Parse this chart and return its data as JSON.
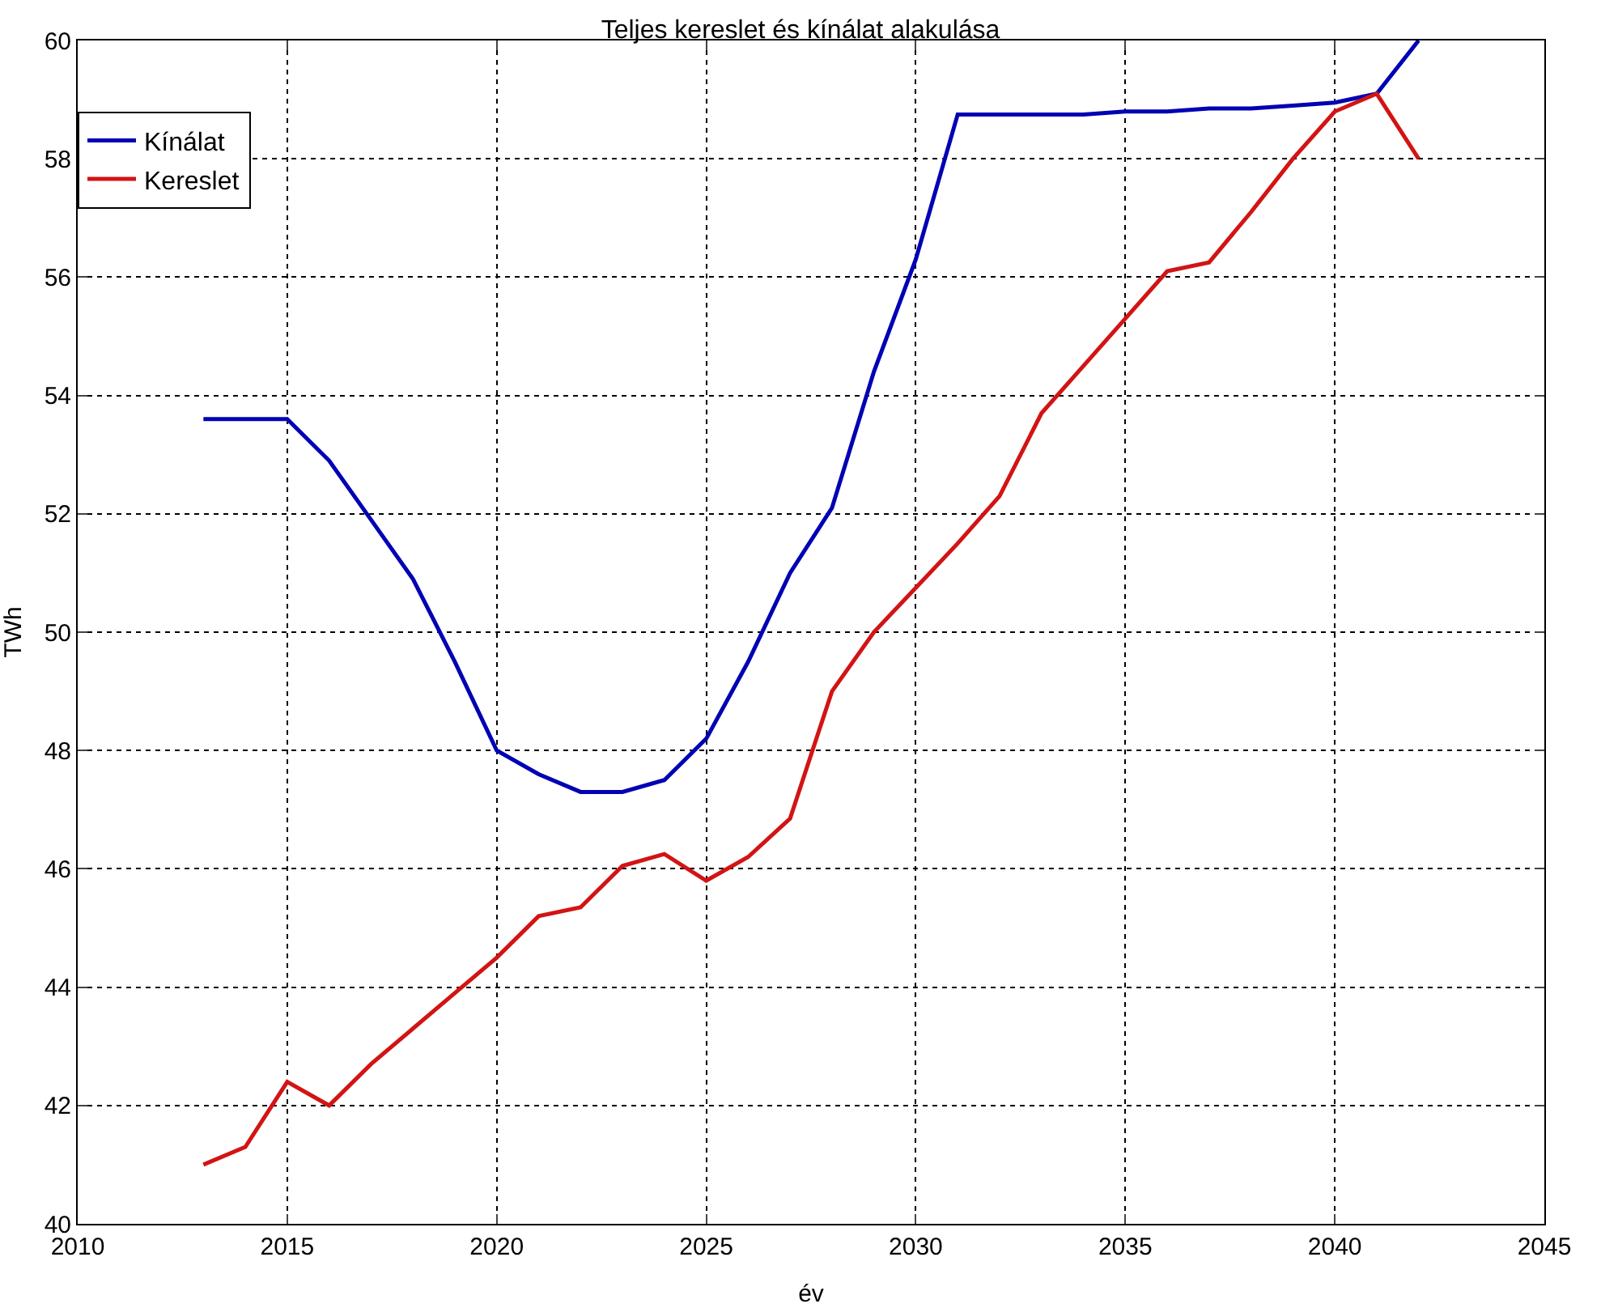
{
  "chart_data": {
    "type": "line",
    "title": "Teljes kereslet és kínálat alakulása",
    "xlabel": "év",
    "ylabel": "TWh",
    "x": [
      2013,
      2014,
      2015,
      2016,
      2017,
      2018,
      2019,
      2020,
      2021,
      2022,
      2023,
      2024,
      2025,
      2026,
      2027,
      2028,
      2029,
      2030,
      2031,
      2032,
      2033,
      2034,
      2035,
      2036,
      2037,
      2038,
      2039,
      2040,
      2041,
      2042
    ],
    "series": [
      {
        "name": "Kínálat",
        "color": "#0000b4",
        "values": [
          53.6,
          53.6,
          53.6,
          52.9,
          51.9,
          50.9,
          49.5,
          48.0,
          47.6,
          47.3,
          47.3,
          47.5,
          48.2,
          49.5,
          51.0,
          52.1,
          54.4,
          56.3,
          58.75,
          58.75,
          58.75,
          58.75,
          58.8,
          58.8,
          58.85,
          58.85,
          58.9,
          58.95,
          59.1,
          60.0
        ]
      },
      {
        "name": "Kereslet",
        "color": "#d21414",
        "values": [
          41.0,
          41.3,
          42.4,
          42.0,
          42.7,
          43.3,
          43.9,
          44.5,
          45.2,
          45.35,
          46.05,
          46.25,
          45.8,
          46.2,
          46.85,
          49.0,
          50.0,
          50.75,
          51.5,
          52.3,
          53.7,
          54.5,
          55.3,
          56.1,
          56.25,
          57.1,
          58.0,
          58.8,
          59.1,
          58.0
        ]
      }
    ],
    "xlim": [
      2010,
      2045
    ],
    "xticks": [
      2010,
      2015,
      2020,
      2025,
      2030,
      2035,
      2040,
      2045
    ],
    "ylim": [
      40,
      60
    ],
    "yticks": [
      40,
      42,
      44,
      46,
      48,
      50,
      52,
      54,
      56,
      58,
      60
    ],
    "grid": true,
    "legend": "top left",
    "line_style": "solid",
    "marker": "none"
  }
}
